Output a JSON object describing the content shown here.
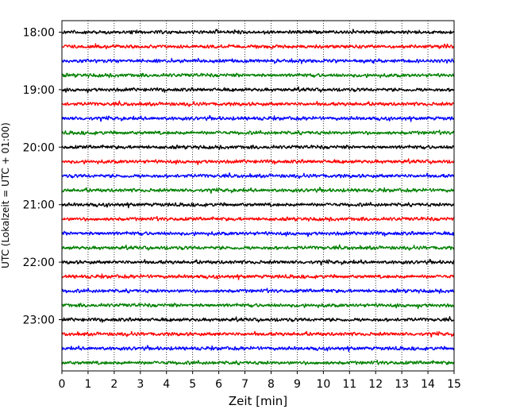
{
  "chart_data": {
    "type": "line",
    "title": "",
    "xlabel": "Zeit  [min]",
    "ylabel": "UTC (Lokalzeit = UTC + 01:00)",
    "xlim": [
      0,
      15
    ],
    "x_ticks": [
      0,
      1,
      2,
      3,
      4,
      5,
      6,
      7,
      8,
      9,
      10,
      11,
      12,
      13,
      14,
      15
    ],
    "y_tick_labels": [
      "18:00",
      "19:00",
      "20:00",
      "21:00",
      "22:00",
      "23:00"
    ],
    "trace_start_time": "18:00",
    "trace_interval_minutes": 15,
    "trace_count": 24,
    "trace_colors": [
      "#000000",
      "#ff0000",
      "#0000ff",
      "#008000"
    ],
    "vertical_grid": "dotted",
    "series": [
      {
        "start": "18:00"
      },
      {
        "start": "18:15"
      },
      {
        "start": "18:30"
      },
      {
        "start": "18:45"
      },
      {
        "start": "19:00"
      },
      {
        "start": "19:15"
      },
      {
        "start": "19:30"
      },
      {
        "start": "19:45"
      },
      {
        "start": "20:00"
      },
      {
        "start": "20:15"
      },
      {
        "start": "20:30"
      },
      {
        "start": "20:45"
      },
      {
        "start": "21:00"
      },
      {
        "start": "21:15"
      },
      {
        "start": "21:30"
      },
      {
        "start": "21:45"
      },
      {
        "start": "22:00"
      },
      {
        "start": "22:15"
      },
      {
        "start": "22:30"
      },
      {
        "start": "22:45"
      },
      {
        "start": "23:00"
      },
      {
        "start": "23:15"
      },
      {
        "start": "23:30"
      },
      {
        "start": "23:45"
      }
    ]
  }
}
